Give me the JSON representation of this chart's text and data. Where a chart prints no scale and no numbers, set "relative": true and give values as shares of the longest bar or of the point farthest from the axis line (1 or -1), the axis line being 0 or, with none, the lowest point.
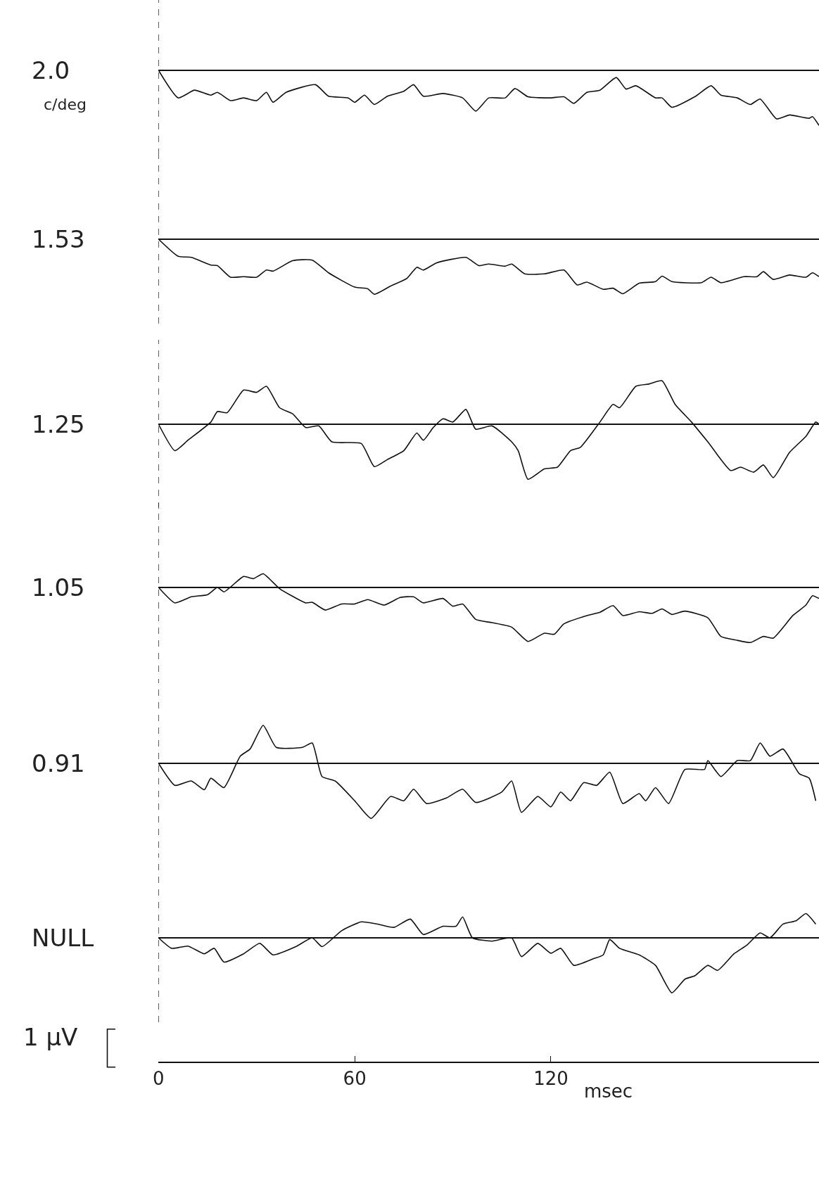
{
  "chart_data": [
    {
      "type": "line",
      "title": "2.0",
      "subtitle": "c/deg",
      "relative": true,
      "xlim": [
        0,
        202
      ],
      "xticks": [
        0,
        60,
        120
      ],
      "tick_labels": false,
      "marker": "none",
      "line_style": "solid",
      "ref_lines": [
        {
          "axis": "x",
          "value": 0,
          "line_style": "dashed"
        }
      ],
      "x": [
        0,
        6,
        11,
        16,
        18,
        22,
        26,
        30,
        33,
        35,
        39,
        48,
        52,
        58,
        60,
        63,
        66,
        70,
        75,
        78,
        81,
        87,
        93,
        97,
        101,
        106,
        109,
        113,
        120,
        124,
        127,
        131,
        135,
        140,
        143,
        146,
        152,
        154,
        157,
        164,
        169,
        172,
        177,
        181,
        184,
        189,
        193,
        199,
        200,
        202
      ],
      "values": [
        0,
        -0.5,
        -0.36,
        -0.45,
        -0.4,
        -0.55,
        -0.5,
        -0.55,
        -0.4,
        -0.58,
        -0.4,
        -0.26,
        -0.47,
        -0.5,
        -0.58,
        -0.45,
        -0.62,
        -0.47,
        -0.38,
        -0.26,
        -0.47,
        -0.42,
        -0.5,
        -0.74,
        -0.5,
        -0.5,
        -0.33,
        -0.48,
        -0.5,
        -0.48,
        -0.6,
        -0.4,
        -0.36,
        -0.13,
        -0.34,
        -0.28,
        -0.5,
        -0.5,
        -0.67,
        -0.48,
        -0.28,
        -0.45,
        -0.5,
        -0.62,
        -0.52,
        -0.88,
        -0.81,
        -0.87,
        -0.84,
        -1.0
      ]
    },
    {
      "type": "line",
      "title": "1.53",
      "relative": true,
      "xlim": [
        0,
        202
      ],
      "xticks": [
        0,
        60,
        120
      ],
      "tick_labels": false,
      "marker": "none",
      "line_style": "solid",
      "ref_lines": [
        {
          "axis": "x",
          "value": 0,
          "line_style": "dashed"
        }
      ],
      "x": [
        0,
        6,
        10,
        16,
        18,
        22,
        26,
        30,
        33,
        35,
        41,
        47,
        52,
        60,
        64,
        66,
        71,
        76,
        79,
        81,
        85,
        94,
        98,
        101,
        106,
        108,
        112,
        118,
        124,
        128,
        131,
        136,
        139,
        142,
        147,
        152,
        154,
        157,
        166,
        169,
        172,
        179,
        183,
        185,
        188,
        193,
        198,
        200,
        202
      ],
      "values": [
        0,
        -0.31,
        -0.33,
        -0.47,
        -0.48,
        -0.69,
        -0.68,
        -0.69,
        -0.56,
        -0.58,
        -0.39,
        -0.38,
        -0.61,
        -0.87,
        -0.9,
        -1.0,
        -0.85,
        -0.71,
        -0.51,
        -0.56,
        -0.43,
        -0.33,
        -0.48,
        -0.45,
        -0.49,
        -0.45,
        -0.63,
        -0.63,
        -0.56,
        -0.83,
        -0.78,
        -0.91,
        -0.89,
        -0.99,
        -0.8,
        -0.77,
        -0.67,
        -0.77,
        -0.79,
        -0.69,
        -0.79,
        -0.68,
        -0.68,
        -0.59,
        -0.73,
        -0.65,
        -0.69,
        -0.61,
        -0.68
      ]
    },
    {
      "type": "line",
      "title": "1.25",
      "relative": true,
      "xlim": [
        0,
        202
      ],
      "xticks": [
        0,
        60,
        120
      ],
      "tick_labels": false,
      "marker": "none",
      "line_style": "solid",
      "ref_lines": [
        {
          "axis": "x",
          "value": 0,
          "line_style": "dashed"
        }
      ],
      "x": [
        0,
        5,
        9,
        16,
        18,
        21,
        26,
        30,
        33,
        37,
        41,
        45,
        49,
        53,
        62,
        66,
        70,
        75,
        79,
        81,
        84,
        87,
        90,
        94,
        97,
        102,
        108,
        110,
        113,
        118,
        122,
        126,
        129,
        135,
        139,
        141,
        146,
        150,
        154,
        158,
        163,
        168,
        175,
        178,
        182,
        185,
        188,
        193,
        198,
        201,
        202
      ],
      "values": [
        0,
        -0.48,
        -0.29,
        0.04,
        0.23,
        0.21,
        0.62,
        0.58,
        0.69,
        0.3,
        0.19,
        -0.06,
        -0.03,
        -0.32,
        -0.35,
        -0.77,
        -0.64,
        -0.48,
        -0.16,
        -0.29,
        -0.06,
        0.1,
        0.04,
        0.27,
        -0.09,
        -0.03,
        -0.32,
        -0.48,
        -1.0,
        -0.81,
        -0.78,
        -0.48,
        -0.42,
        0.04,
        0.36,
        0.3,
        0.69,
        0.73,
        0.79,
        0.36,
        0.04,
        -0.32,
        -0.84,
        -0.78,
        -0.87,
        -0.74,
        -0.97,
        -0.51,
        -0.22,
        0.04,
        0
      ]
    },
    {
      "type": "line",
      "title": "1.05",
      "relative": true,
      "xlim": [
        0,
        202
      ],
      "xticks": [
        0,
        60,
        120
      ],
      "tick_labels": false,
      "marker": "none",
      "line_style": "solid",
      "ref_lines": [
        {
          "axis": "x",
          "value": 0,
          "line_style": "dashed"
        }
      ],
      "x": [
        0,
        5,
        10,
        15,
        18,
        20,
        26,
        29,
        32,
        37,
        45,
        47,
        51,
        56,
        60,
        64,
        69,
        74,
        78,
        81,
        87,
        90,
        93,
        97,
        102,
        108,
        113,
        118,
        121,
        124,
        131,
        135,
        139,
        142,
        147,
        151,
        154,
        157,
        161,
        168,
        172,
        177,
        181,
        185,
        188,
        194,
        198,
        200,
        202
      ],
      "values": [
        0,
        -0.28,
        -0.17,
        -0.13,
        0,
        -0.08,
        0.2,
        0.16,
        0.25,
        -0.02,
        -0.28,
        -0.27,
        -0.41,
        -0.3,
        -0.3,
        -0.22,
        -0.32,
        -0.18,
        -0.17,
        -0.28,
        -0.2,
        -0.34,
        -0.3,
        -0.58,
        -0.64,
        -0.72,
        -0.98,
        -0.83,
        -0.85,
        -0.66,
        -0.51,
        -0.45,
        -0.33,
        -0.51,
        -0.44,
        -0.47,
        -0.39,
        -0.49,
        -0.43,
        -0.55,
        -0.89,
        -0.96,
        -1.0,
        -0.89,
        -0.92,
        -0.51,
        -0.32,
        -0.15,
        -0.2
      ]
    },
    {
      "type": "line",
      "title": "0.91",
      "relative": true,
      "xlim": [
        0,
        202
      ],
      "xticks": [
        0,
        60,
        120
      ],
      "tick_labels": false,
      "marker": "none",
      "line_style": "solid",
      "ref_lines": [
        {
          "axis": "x",
          "value": 0,
          "line_style": "dashed"
        }
      ],
      "x": [
        0,
        5,
        10,
        14,
        16,
        20,
        25,
        28,
        32,
        36,
        44,
        47,
        50,
        54,
        60,
        65,
        71,
        75,
        78,
        82,
        88,
        93,
        97,
        105,
        108,
        111,
        116,
        120,
        123,
        126,
        130,
        134,
        138,
        142,
        147,
        149,
        152,
        156,
        161,
        167,
        168,
        172,
        177,
        181,
        184,
        187,
        191,
        196,
        199,
        201
      ],
      "values": [
        0,
        -0.4,
        -0.32,
        -0.48,
        -0.27,
        -0.44,
        0.13,
        0.26,
        0.69,
        0.29,
        0.29,
        0.37,
        -0.24,
        -0.32,
        -0.68,
        -1.0,
        -0.6,
        -0.68,
        -0.47,
        -0.73,
        -0.63,
        -0.47,
        -0.71,
        -0.52,
        -0.32,
        -0.89,
        -0.6,
        -0.79,
        -0.52,
        -0.68,
        -0.35,
        -0.4,
        -0.16,
        -0.73,
        -0.55,
        -0.68,
        -0.44,
        -0.73,
        -0.11,
        -0.11,
        0.05,
        -0.24,
        0.05,
        0.05,
        0.37,
        0.13,
        0.26,
        -0.19,
        -0.27,
        -0.68
      ]
    },
    {
      "type": "line",
      "title": "NULL",
      "relative": true,
      "xlim": [
        0,
        202
      ],
      "xticks": [
        0,
        60,
        120
      ],
      "xlabel": "msec",
      "tick_labels": "x",
      "marker": "none",
      "line_style": "solid",
      "ref_lines": [
        {
          "axis": "x",
          "value": 0,
          "line_style": "dashed"
        }
      ],
      "annotations": [
        "1 μV"
      ],
      "x": [
        0,
        4,
        9,
        14,
        17,
        20,
        26,
        31,
        35,
        42,
        47,
        50,
        56,
        62,
        67,
        72,
        77,
        81,
        87,
        91,
        93,
        96,
        102,
        108,
        111,
        116,
        120,
        123,
        127,
        133,
        136,
        138,
        141,
        147,
        152,
        157,
        161,
        164,
        168,
        171,
        176,
        180,
        184,
        187,
        191,
        195,
        198,
        201
      ],
      "values": [
        0,
        -0.19,
        -0.15,
        -0.29,
        -0.19,
        -0.44,
        -0.29,
        -0.1,
        -0.31,
        -0.16,
        0,
        -0.16,
        0.13,
        0.29,
        0.25,
        0.19,
        0.34,
        0.06,
        0.21,
        0.21,
        0.38,
        0,
        -0.06,
        0,
        -0.34,
        -0.1,
        -0.28,
        -0.19,
        -0.5,
        -0.38,
        -0.31,
        -0.03,
        -0.19,
        -0.31,
        -0.5,
        -1.0,
        -0.75,
        -0.69,
        -0.5,
        -0.59,
        -0.29,
        -0.13,
        0.09,
        0,
        0.25,
        0.31,
        0.44,
        0.25
      ]
    }
  ]
}
